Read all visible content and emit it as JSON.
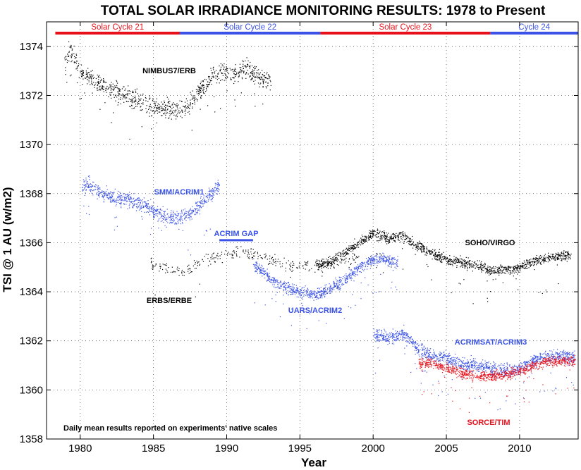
{
  "chart_data": {
    "type": "scatter",
    "title": "TOTAL SOLAR IRRADIANCE MONITORING RESULTS: 1978 to Present",
    "xlabel": "Year",
    "ylabel": "TSI @ 1 AU (w/m2)",
    "xlim": [
      1977.7,
      2014.0
    ],
    "ylim": [
      1358,
      1375
    ],
    "xticks": [
      1980,
      1985,
      1990,
      1995,
      2000,
      2005,
      2010
    ],
    "yticks": [
      1358,
      1360,
      1362,
      1364,
      1366,
      1368,
      1370,
      1372,
      1374
    ],
    "grid": true,
    "note": "Daily mean results reported on experiments' native scales",
    "cycles": [
      {
        "label": "Solar Cycle 21",
        "start": 1978.3,
        "end": 1986.8,
        "color": "#e8111b"
      },
      {
        "label": "Solar Cycle 22",
        "start": 1986.8,
        "end": 1996.4,
        "color": "#3a52e6"
      },
      {
        "label": "Solar Cycle 23",
        "start": 1996.4,
        "end": 2008.0,
        "color": "#e8111b"
      },
      {
        "label": "Cycle 24",
        "start": 2008.0,
        "end": 2014.0,
        "color": "#3a52e6"
      }
    ],
    "gap": {
      "label": "ACRIM GAP",
      "start": 1989.5,
      "end": 1991.8,
      "value": 1366.1,
      "color": "#3a52e6"
    },
    "series": [
      {
        "name": "NIMBUS7/ERB",
        "color": "#000000",
        "x_range": [
          1978.9,
          1993.0
        ],
        "x": [
          1978.9,
          1979.2,
          1979.5,
          1980.0,
          1981.0,
          1982.0,
          1983.0,
          1984.0,
          1985.0,
          1986.0,
          1986.8,
          1987.5,
          1988.0,
          1988.5,
          1989.0,
          1989.5,
          1990.0,
          1990.5,
          1991.0,
          1991.5,
          1992.0,
          1992.5,
          1993.0
        ],
        "y": [
          1373.3,
          1373.8,
          1373.6,
          1373.0,
          1372.6,
          1372.3,
          1372.0,
          1371.8,
          1371.5,
          1371.5,
          1371.3,
          1371.7,
          1372.1,
          1372.4,
          1372.8,
          1372.9,
          1373.0,
          1372.8,
          1373.1,
          1373.1,
          1372.9,
          1372.6,
          1372.7
        ]
      },
      {
        "name": "SMM/ACRIM1",
        "color": "#3a52e6",
        "x_range": [
          1980.1,
          1989.5
        ],
        "x": [
          1980.1,
          1980.5,
          1981.0,
          1982.0,
          1983.0,
          1984.0,
          1984.4,
          1985.0,
          1986.0,
          1986.8,
          1987.5,
          1988.0,
          1988.5,
          1989.0,
          1989.5
        ],
        "y": [
          1368.3,
          1368.4,
          1368.2,
          1367.9,
          1367.8,
          1367.6,
          1367.6,
          1367.3,
          1367.0,
          1367.0,
          1367.2,
          1367.5,
          1367.8,
          1368.0,
          1368.4
        ]
      },
      {
        "name": "ERBS/ERBE",
        "color": "#000000",
        "x_range": [
          1984.8,
          1999.0
        ],
        "x": [
          1984.8,
          1986.0,
          1987.0,
          1988.0,
          1989.0,
          1990.0,
          1991.0,
          1992.0,
          1993.0,
          1994.0,
          1995.0,
          1996.0,
          1997.0,
          1998.0,
          1999.0
        ],
        "y": [
          1365.2,
          1364.9,
          1364.8,
          1365.1,
          1365.4,
          1365.6,
          1365.7,
          1365.5,
          1365.3,
          1365.1,
          1365.1,
          1365.1,
          1365.2,
          1365.3,
          1365.4
        ]
      },
      {
        "name": "UARS/ACRIM2",
        "color": "#3a52e6",
        "x_range": [
          1991.8,
          2001.7
        ],
        "x": [
          1991.8,
          1992.0,
          1992.5,
          1993.0,
          1994.0,
          1995.0,
          1996.0,
          1997.0,
          1998.0,
          1999.0,
          2000.0,
          2000.5,
          2001.0,
          2001.7
        ],
        "y": [
          1365.2,
          1365.0,
          1364.8,
          1364.5,
          1364.2,
          1364.0,
          1363.9,
          1364.1,
          1364.5,
          1365.0,
          1365.3,
          1365.4,
          1365.3,
          1365.2
        ]
      },
      {
        "name": "SOHO/VIRGO",
        "color": "#000000",
        "x_range": [
          1996.1,
          2013.5
        ],
        "x": [
          1996.1,
          1997.0,
          1998.0,
          1999.0,
          2000.0,
          2001.0,
          2002.0,
          2003.0,
          2004.0,
          2005.0,
          2006.0,
          2007.0,
          2008.0,
          2009.0,
          2010.0,
          2011.0,
          2012.0,
          2013.0,
          2013.5
        ],
        "y": [
          1365.1,
          1365.2,
          1365.6,
          1366.0,
          1366.4,
          1366.2,
          1366.3,
          1365.9,
          1365.6,
          1365.3,
          1365.2,
          1365.1,
          1364.9,
          1364.9,
          1365.0,
          1365.3,
          1365.4,
          1365.5,
          1365.5
        ]
      },
      {
        "name": "ACRIMSAT/ACRIM3",
        "color": "#3a52e6",
        "x_range": [
          2000.0,
          2013.8
        ],
        "x": [
          2000.0,
          2000.5,
          2001.0,
          2001.5,
          2002.0,
          2002.5,
          2003.0,
          2004.0,
          2005.0,
          2006.0,
          2007.0,
          2008.0,
          2009.0,
          2010.0,
          2011.0,
          2012.0,
          2013.0,
          2013.8
        ],
        "y": [
          1362.3,
          1362.2,
          1362.1,
          1362.2,
          1362.3,
          1362.1,
          1361.7,
          1361.4,
          1361.3,
          1361.1,
          1361.0,
          1360.9,
          1360.8,
          1360.9,
          1361.2,
          1361.4,
          1361.4,
          1361.3
        ]
      },
      {
        "name": "SORCE/TIM",
        "color": "#e8111b",
        "x_range": [
          2003.1,
          2013.8
        ],
        "x": [
          2003.1,
          2004.0,
          2005.0,
          2006.0,
          2007.0,
          2008.0,
          2009.0,
          2010.0,
          2011.0,
          2012.0,
          2013.0,
          2013.8
        ],
        "y": [
          1361.1,
          1361.1,
          1360.9,
          1360.7,
          1360.6,
          1360.6,
          1360.6,
          1360.8,
          1361.0,
          1361.2,
          1361.2,
          1361.2
        ]
      }
    ]
  }
}
